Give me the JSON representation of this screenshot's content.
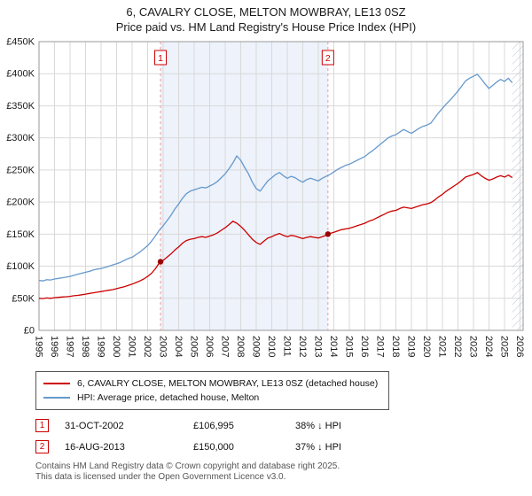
{
  "title": "6, CAVALRY CLOSE, MELTON MOWBRAY, LE13 0SZ",
  "subtitle": "Price paid vs. HM Land Registry's House Price Index (HPI)",
  "chart_data": {
    "type": "line",
    "xlim": [
      1995,
      2026.2
    ],
    "ylim": [
      0,
      450
    ],
    "unit": "GBP thousands",
    "x_ticks": [
      1995,
      1996,
      1997,
      1998,
      1999,
      2000,
      2001,
      2002,
      2003,
      2004,
      2005,
      2006,
      2007,
      2008,
      2009,
      2010,
      2011,
      2012,
      2013,
      2014,
      2015,
      2016,
      2017,
      2018,
      2019,
      2020,
      2021,
      2022,
      2023,
      2024,
      2025,
      2026
    ],
    "y_ticks": [
      {
        "value": 0,
        "label": "£0"
      },
      {
        "value": 50,
        "label": "£50K"
      },
      {
        "value": 100,
        "label": "£100K"
      },
      {
        "value": 150,
        "label": "£150K"
      },
      {
        "value": 200,
        "label": "£200K"
      },
      {
        "value": 250,
        "label": "£250K"
      },
      {
        "value": 300,
        "label": "£300K"
      },
      {
        "value": 350,
        "label": "£350K"
      },
      {
        "value": 400,
        "label": "£400K"
      },
      {
        "value": 450,
        "label": "£450K"
      }
    ],
    "grid": true,
    "x_start": 1995.0,
    "x_step": 0.25,
    "series": [
      {
        "name": "HPI: Average price, detached house, Melton",
        "color": "#6699cc",
        "values": [
          78,
          77,
          79,
          78.5,
          80,
          81,
          82,
          83,
          84,
          86,
          87.5,
          89,
          90.5,
          92,
          94,
          95.5,
          96.5,
          98,
          100,
          102,
          104,
          106,
          109,
          112,
          114,
          118,
          122,
          127,
          132,
          139,
          147,
          156,
          163,
          171,
          179,
          189,
          197,
          206,
          213,
          217,
          219,
          221,
          223,
          222,
          225,
          228,
          232,
          238,
          244,
          252,
          261,
          272,
          265,
          254,
          244,
          231,
          221,
          217,
          225,
          233,
          238,
          243,
          246,
          241,
          237,
          240,
          238,
          234,
          231,
          235,
          237,
          235,
          233,
          237,
          240,
          243,
          247,
          251,
          254,
          257,
          259,
          262,
          265,
          268,
          271,
          276,
          280,
          285,
          290,
          295,
          300,
          303,
          305,
          309,
          313,
          310,
          307,
          311,
          315,
          318,
          320,
          323,
          331,
          339,
          346,
          353,
          359,
          366,
          373,
          381,
          389,
          393,
          396,
          399,
          392,
          384,
          377,
          382,
          387,
          391,
          388,
          393,
          386
        ]
      },
      {
        "name": "6, CAVALRY CLOSE, MELTON MOWBRAY, LE13 0SZ (detached house)",
        "color": "#cc0000",
        "values": [
          50,
          49.5,
          50.5,
          50,
          51,
          51.5,
          52,
          52.5,
          53,
          54,
          54.5,
          55.5,
          56.5,
          57.5,
          58.5,
          59.5,
          60.5,
          61.5,
          62.5,
          63.5,
          65,
          66.5,
          68,
          70,
          72,
          74.5,
          77,
          80,
          84,
          89,
          96,
          105,
          109,
          114,
          119,
          125,
          130,
          136,
          140,
          142,
          143,
          145,
          146,
          145,
          147,
          149,
          152,
          156,
          160,
          165,
          170,
          167,
          162,
          156,
          149,
          142,
          137,
          134,
          139,
          144,
          146,
          149,
          151,
          148,
          146,
          148,
          147,
          145,
          143,
          145,
          146,
          145,
          144,
          146,
          148,
          151,
          153,
          155,
          157,
          158,
          159,
          161,
          163,
          165,
          167,
          170,
          172,
          175,
          178,
          181,
          184,
          186,
          187,
          190,
          192,
          191,
          190,
          192,
          194,
          196,
          197,
          199,
          203,
          208,
          212,
          217,
          221,
          225,
          229,
          234,
          239,
          241,
          243,
          246,
          241,
          237,
          234,
          236,
          239,
          241,
          239,
          242,
          238
        ]
      }
    ],
    "shaded_region": {
      "from": 2002.83,
      "to": 2013.62,
      "color": "#edf2fb"
    },
    "hatch_region": {
      "from": 2025.5,
      "to": 2026.2,
      "color": "#b8c0cc"
    },
    "events": [
      {
        "n": "1",
        "x": 2002.83,
        "y": 106.995
      },
      {
        "n": "2",
        "x": 2013.62,
        "y": 150
      }
    ],
    "event_line_color": "#ee9999",
    "marker_color": "#990000"
  },
  "legend": {
    "items": [
      {
        "label": "6, CAVALRY CLOSE, MELTON MOWBRAY, LE13 0SZ (detached house)",
        "color": "#cc0000"
      },
      {
        "label": "HPI: Average price, detached house, Melton",
        "color": "#6699cc"
      }
    ]
  },
  "transactions": [
    {
      "num": "1",
      "date": "31-OCT-2002",
      "price": "£106,995",
      "hpi": "38% ↓ HPI"
    },
    {
      "num": "2",
      "date": "16-AUG-2013",
      "price": "£150,000",
      "hpi": "37% ↓ HPI"
    }
  ],
  "footer": {
    "line1": "Contains HM Land Registry data © Crown copyright and database right 2025.",
    "line2": "This data is licensed under the Open Government Licence v3.0."
  }
}
